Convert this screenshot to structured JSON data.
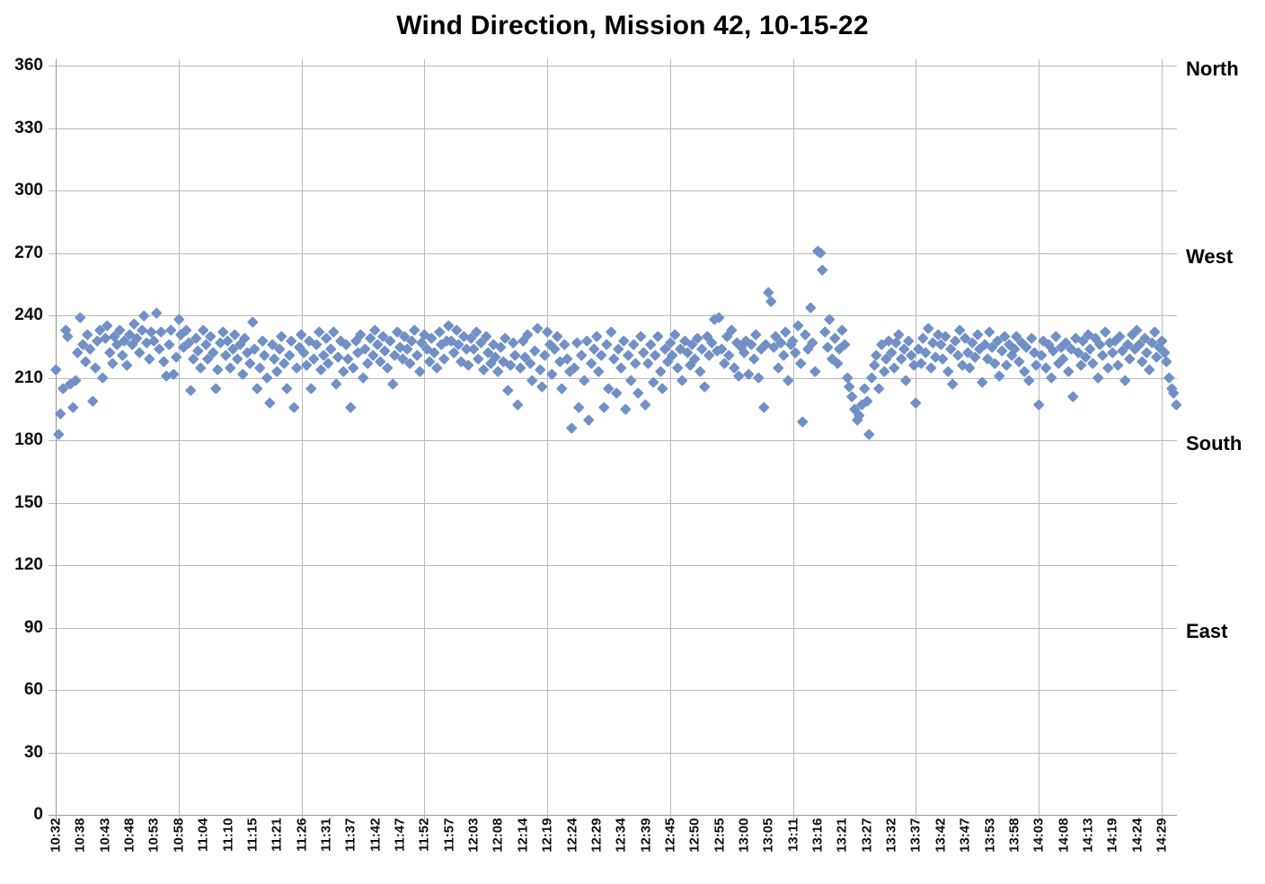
{
  "chart_data": {
    "type": "scatter",
    "title": "Wind Direction, Mission 42, 10-15-22",
    "ylabel": "",
    "xlabel": "",
    "ylim": [
      0,
      360
    ],
    "y_ticks": [
      0,
      30,
      60,
      90,
      120,
      150,
      180,
      210,
      240,
      270,
      300,
      330,
      360
    ],
    "grid": "on",
    "marker_shape": "diamond",
    "marker_color": "#7090c6",
    "grid_color": "#b9b9b9",
    "axis_color": "#979797",
    "right_axis_labels": [
      {
        "label": "North",
        "value": 360
      },
      {
        "label": "West",
        "value": 270
      },
      {
        "label": "South",
        "value": 180
      },
      {
        "label": "East",
        "value": 90
      }
    ],
    "x_tick_labels": [
      "10:32",
      "10:38",
      "10:43",
      "10:48",
      "10:53",
      "10:58",
      "11:04",
      "11:10",
      "11:15",
      "11:21",
      "11:26",
      "11:31",
      "11:37",
      "11:42",
      "11:47",
      "11:52",
      "11:57",
      "12:03",
      "12:08",
      "12:14",
      "12:19",
      "12:24",
      "12:29",
      "12:34",
      "12:39",
      "12:45",
      "12:50",
      "12:55",
      "13:00",
      "13:05",
      "13:11",
      "13:16",
      "13:21",
      "13:27",
      "13:32",
      "13:37",
      "13:42",
      "13:47",
      "13:53",
      "13:58",
      "14:03",
      "14:08",
      "14:13",
      "14:19",
      "14:24",
      "14:29"
    ],
    "labels_every_n_points": 10,
    "gridline_every_n_labels": 5,
    "values": [
      214,
      183,
      193,
      205,
      233,
      230,
      207,
      196,
      209,
      222,
      239,
      226,
      218,
      231,
      224,
      199,
      215,
      228,
      233,
      210,
      229,
      235,
      222,
      217,
      230,
      226,
      233,
      221,
      228,
      216,
      231,
      226,
      236,
      229,
      222,
      233,
      240,
      227,
      219,
      232,
      228,
      241,
      224,
      232,
      218,
      211,
      226,
      233,
      212,
      220,
      238,
      231,
      225,
      233,
      227,
      204,
      219,
      229,
      223,
      215,
      233,
      226,
      219,
      230,
      222,
      205,
      214,
      227,
      232,
      221,
      228,
      215,
      224,
      231,
      219,
      226,
      212,
      229,
      222,
      217,
      237,
      224,
      205,
      215,
      228,
      221,
      210,
      198,
      226,
      219,
      213,
      224,
      230,
      217,
      205,
      221,
      228,
      196,
      215,
      225,
      231,
      222,
      216,
      228,
      205,
      219,
      226,
      232,
      214,
      221,
      229,
      217,
      224,
      232,
      207,
      220,
      228,
      213,
      226,
      219,
      196,
      215,
      228,
      222,
      231,
      210,
      224,
      217,
      229,
      221,
      233,
      226,
      218,
      230,
      223,
      215,
      228,
      207,
      221,
      232,
      225,
      219,
      230,
      224,
      217,
      228,
      233,
      221,
      213,
      227,
      231,
      224,
      218,
      229,
      222,
      215,
      232,
      226,
      219,
      228,
      235,
      228,
      222,
      233,
      226,
      218,
      230,
      224,
      216,
      229,
      224,
      232,
      219,
      227,
      214,
      230,
      222,
      217,
      226,
      220,
      213,
      225,
      218,
      229,
      204,
      216,
      227,
      221,
      197,
      215,
      228,
      220,
      231,
      217,
      209,
      223,
      234,
      214,
      206,
      221,
      232,
      226,
      212,
      224,
      230,
      218,
      205,
      226,
      219,
      213,
      186,
      215,
      227,
      196,
      221,
      209,
      228,
      190,
      217,
      224,
      230,
      213,
      221,
      196,
      226,
      205,
      232,
      219,
      203,
      224,
      215,
      228,
      195,
      221,
      209,
      226,
      217,
      203,
      230,
      222,
      197,
      217,
      226,
      208,
      221,
      230,
      213,
      205,
      224,
      218,
      227,
      221,
      231,
      215,
      224,
      209,
      228,
      222,
      216,
      226,
      219,
      229,
      213,
      224,
      206,
      230,
      221,
      227,
      238,
      223,
      239,
      224,
      217,
      230,
      221,
      233,
      215,
      227,
      211,
      225,
      222,
      228,
      212,
      226,
      219,
      231,
      210,
      224,
      196,
      226,
      251,
      247,
      225,
      230,
      215,
      227,
      221,
      232,
      209,
      226,
      228,
      222,
      235,
      217,
      189,
      231,
      224,
      244,
      227,
      213,
      271,
      270,
      262,
      232,
      225,
      238,
      219,
      229,
      217,
      224,
      233,
      226,
      210,
      206,
      201,
      195,
      190,
      192,
      197,
      205,
      199,
      183,
      210,
      216,
      221,
      205,
      226,
      213,
      219,
      228,
      222,
      215,
      227,
      231,
      219,
      224,
      209,
      228,
      221,
      216,
      198,
      224,
      217,
      229,
      222,
      234,
      215,
      227,
      220,
      231,
      226,
      219,
      230,
      213,
      224,
      207,
      228,
      221,
      233,
      216,
      229,
      222,
      215,
      227,
      220,
      231,
      224,
      208,
      226,
      219,
      232,
      225,
      217,
      228,
      211,
      223,
      230,
      216,
      226,
      221,
      224,
      230,
      218,
      227,
      213,
      225,
      209,
      229,
      222,
      216,
      197,
      221,
      228,
      215,
      226,
      210,
      223,
      230,
      217,
      225,
      219,
      227,
      213,
      224,
      201,
      229,
      222,
      216,
      228,
      220,
      231,
      224,
      217,
      229,
      210,
      226,
      221,
      232,
      215,
      227,
      222,
      228,
      216,
      230,
      223,
      209,
      226,
      219,
      231,
      224,
      233,
      226,
      218,
      229,
      222,
      214,
      227,
      232,
      220,
      225,
      228,
      222,
      218,
      210,
      205,
      203,
      197
    ]
  }
}
